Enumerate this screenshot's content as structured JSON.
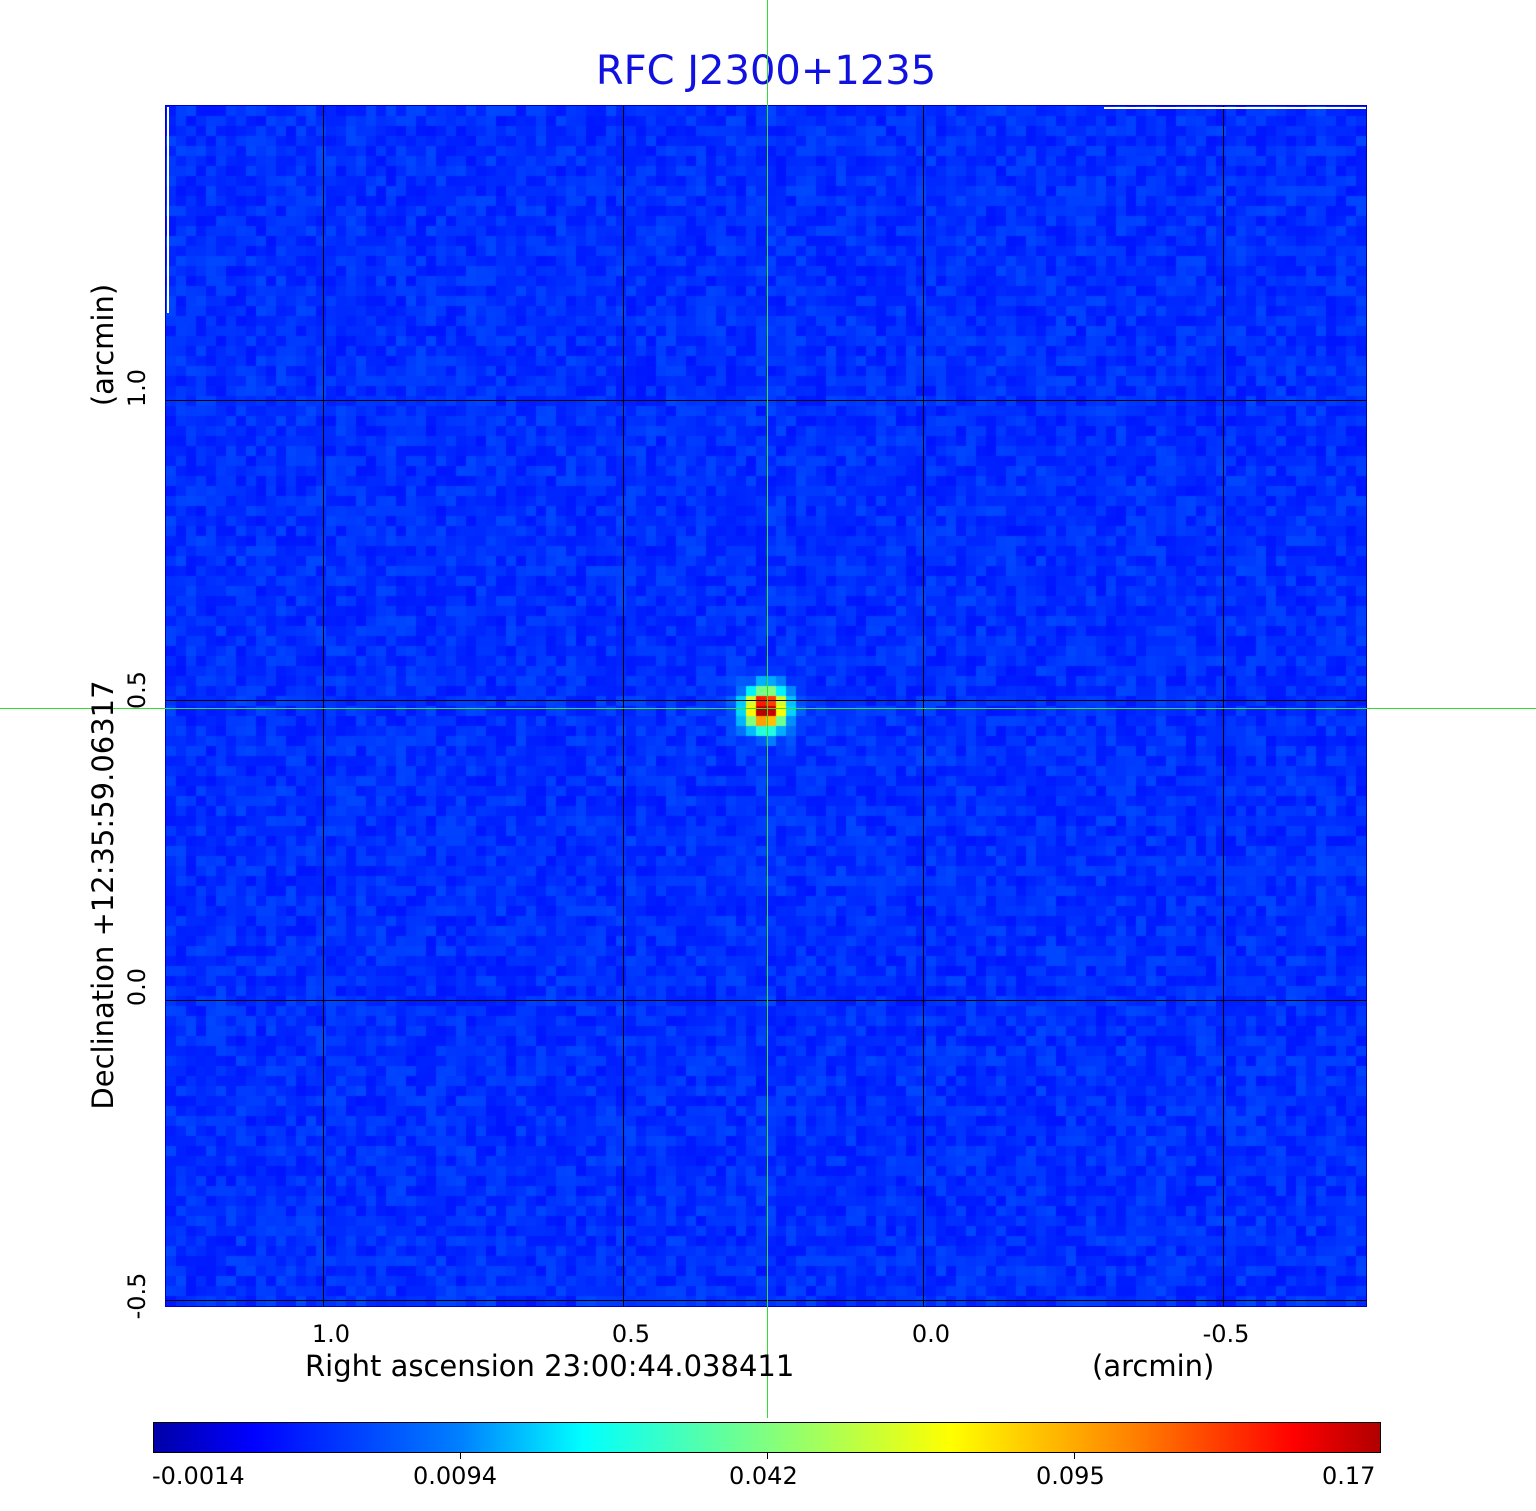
{
  "chart_data": {
    "type": "heatmap",
    "title": "RFC J2300+1235",
    "xlabel": "Right ascension  23:00:44.038411",
    "xunit": "(arcmin)",
    "ylabel": "Declination  +12:35:59.06317",
    "yunit": "(arcmin)",
    "xticks": [
      "1.0",
      "0.5",
      "0.0",
      "-0.5"
    ],
    "yticks": [
      "1.0",
      "0.5",
      "0.0",
      "-0.5"
    ],
    "xlim": [
      1.26,
      -0.74
    ],
    "ylim": [
      -0.51,
      1.5
    ],
    "grid": true,
    "colormap": "jet",
    "colorbar": {
      "ticks": [
        "-0.0014",
        "0.0094",
        "0.042",
        "0.095",
        "0.17"
      ],
      "range": [
        -0.0014,
        0.17
      ],
      "placement": "bottom"
    },
    "peak": {
      "x": 0.26,
      "y": 0.49,
      "value": 0.17
    },
    "crosshair": {
      "x": 0.26,
      "y": 0.49,
      "color": "#33dd33"
    },
    "background_color": "#1432f2"
  }
}
